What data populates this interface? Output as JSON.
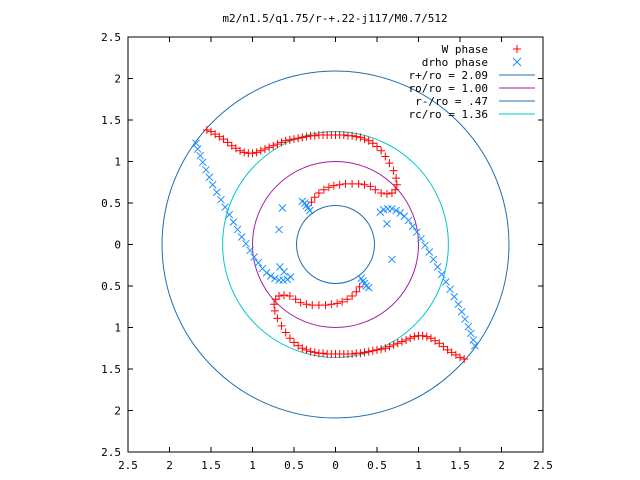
{
  "chart_data": {
    "type": "scatter",
    "title": "m2/n1.5/q1.75/r-+.22-j117/M0.7/512",
    "xlim": [
      -2.5,
      2.5
    ],
    "ylim": [
      -2.5,
      2.5
    ],
    "x_tick_values": [
      -2.5,
      -2,
      -1.5,
      -1,
      -0.5,
      0,
      0.5,
      1,
      1.5,
      2,
      2.5
    ],
    "x_tick_labels": [
      "2.5",
      "2",
      "1.5",
      "1",
      "0.5",
      "0",
      "0.5",
      "1",
      "1.5",
      "2",
      "2.5"
    ],
    "y_tick_values": [
      2.5,
      2,
      1.5,
      1,
      0.5,
      0,
      -0.5,
      -1,
      -1.5,
      -2,
      -2.5
    ],
    "y_tick_labels": [
      "2.5",
      "2",
      "1.5",
      "1",
      "0.5",
      "0",
      "0.5",
      "1",
      "1.5",
      "2",
      "2.5"
    ],
    "grid": false,
    "legend_position": "top-right",
    "series": [
      {
        "name": "W phase",
        "marker": "plus",
        "color": "#ff0000",
        "points": [
          [
            -1.55,
            1.38
          ],
          [
            -1.5,
            1.36
          ],
          [
            -1.45,
            1.33
          ],
          [
            -1.4,
            1.3
          ],
          [
            -1.35,
            1.27
          ],
          [
            -1.3,
            1.23
          ],
          [
            -1.25,
            1.19
          ],
          [
            -1.2,
            1.16
          ],
          [
            -1.15,
            1.13
          ],
          [
            -1.1,
            1.11
          ],
          [
            -1.05,
            1.1
          ],
          [
            -1.0,
            1.1
          ],
          [
            -0.95,
            1.11
          ],
          [
            -0.9,
            1.13
          ],
          [
            -0.85,
            1.15
          ],
          [
            -0.8,
            1.17
          ],
          [
            -0.75,
            1.19
          ],
          [
            -0.7,
            1.21
          ],
          [
            -0.65,
            1.23
          ],
          [
            -0.6,
            1.25
          ],
          [
            -0.55,
            1.26
          ],
          [
            -0.5,
            1.27
          ],
          [
            -0.45,
            1.28
          ],
          [
            -0.4,
            1.29
          ],
          [
            -0.35,
            1.3
          ],
          [
            -0.3,
            1.31
          ],
          [
            -0.25,
            1.31
          ],
          [
            -0.2,
            1.32
          ],
          [
            -0.15,
            1.32
          ],
          [
            -0.1,
            1.32
          ],
          [
            -0.05,
            1.32
          ],
          [
            0.0,
            1.32
          ],
          [
            0.05,
            1.32
          ],
          [
            0.1,
            1.32
          ],
          [
            0.15,
            1.31
          ],
          [
            0.2,
            1.31
          ],
          [
            0.25,
            1.3
          ],
          [
            0.3,
            1.29
          ],
          [
            0.35,
            1.27
          ],
          [
            0.4,
            1.25
          ],
          [
            0.45,
            1.22
          ],
          [
            0.5,
            1.18
          ],
          [
            0.55,
            1.13
          ],
          [
            0.6,
            1.06
          ],
          [
            0.65,
            0.98
          ],
          [
            0.7,
            0.89
          ],
          [
            0.73,
            0.8
          ],
          [
            0.74,
            0.72
          ],
          [
            0.72,
            0.66
          ],
          [
            0.68,
            0.62
          ],
          [
            0.62,
            0.61
          ],
          [
            0.55,
            0.62
          ],
          [
            0.48,
            0.66
          ],
          [
            0.42,
            0.7
          ],
          [
            0.35,
            0.72
          ],
          [
            0.28,
            0.73
          ],
          [
            0.2,
            0.73
          ],
          [
            0.12,
            0.73
          ],
          [
            0.05,
            0.72
          ],
          [
            -0.02,
            0.71
          ],
          [
            -0.08,
            0.69
          ],
          [
            -0.14,
            0.66
          ],
          [
            -0.2,
            0.62
          ],
          [
            -0.25,
            0.57
          ],
          [
            -0.29,
            0.51
          ],
          [
            1.55,
            -1.38
          ],
          [
            1.5,
            -1.36
          ],
          [
            1.45,
            -1.33
          ],
          [
            1.4,
            -1.3
          ],
          [
            1.35,
            -1.27
          ],
          [
            1.3,
            -1.23
          ],
          [
            1.25,
            -1.19
          ],
          [
            1.2,
            -1.16
          ],
          [
            1.15,
            -1.13
          ],
          [
            1.1,
            -1.11
          ],
          [
            1.05,
            -1.1
          ],
          [
            1.0,
            -1.1
          ],
          [
            0.95,
            -1.11
          ],
          [
            0.9,
            -1.13
          ],
          [
            0.85,
            -1.15
          ],
          [
            0.8,
            -1.17
          ],
          [
            0.75,
            -1.19
          ],
          [
            0.7,
            -1.21
          ],
          [
            0.65,
            -1.23
          ],
          [
            0.6,
            -1.25
          ],
          [
            0.55,
            -1.26
          ],
          [
            0.5,
            -1.27
          ],
          [
            0.45,
            -1.28
          ],
          [
            0.4,
            -1.29
          ],
          [
            0.35,
            -1.3
          ],
          [
            0.3,
            -1.31
          ],
          [
            0.25,
            -1.31
          ],
          [
            0.2,
            -1.32
          ],
          [
            0.15,
            -1.32
          ],
          [
            0.1,
            -1.32
          ],
          [
            0.05,
            -1.32
          ],
          [
            0.0,
            -1.32
          ],
          [
            -0.05,
            -1.32
          ],
          [
            -0.1,
            -1.32
          ],
          [
            -0.15,
            -1.31
          ],
          [
            -0.2,
            -1.31
          ],
          [
            -0.25,
            -1.3
          ],
          [
            -0.3,
            -1.29
          ],
          [
            -0.35,
            -1.27
          ],
          [
            -0.4,
            -1.25
          ],
          [
            -0.45,
            -1.22
          ],
          [
            -0.5,
            -1.18
          ],
          [
            -0.55,
            -1.13
          ],
          [
            -0.6,
            -1.06
          ],
          [
            -0.65,
            -0.98
          ],
          [
            -0.7,
            -0.89
          ],
          [
            -0.73,
            -0.8
          ],
          [
            -0.74,
            -0.72
          ],
          [
            -0.72,
            -0.66
          ],
          [
            -0.68,
            -0.62
          ],
          [
            -0.62,
            -0.61
          ],
          [
            -0.55,
            -0.62
          ],
          [
            -0.48,
            -0.66
          ],
          [
            -0.42,
            -0.7
          ],
          [
            -0.35,
            -0.72
          ],
          [
            -0.28,
            -0.73
          ],
          [
            -0.2,
            -0.73
          ],
          [
            -0.12,
            -0.73
          ],
          [
            -0.05,
            -0.72
          ],
          [
            0.02,
            -0.71
          ],
          [
            0.08,
            -0.69
          ],
          [
            0.14,
            -0.66
          ],
          [
            0.2,
            -0.62
          ],
          [
            0.25,
            -0.57
          ],
          [
            0.29,
            -0.51
          ]
        ]
      },
      {
        "name": "drho phase",
        "marker": "cross",
        "color": "#1e90ff",
        "points": [
          [
            -1.68,
            1.22
          ],
          [
            -1.66,
            1.15
          ],
          [
            -1.63,
            1.07
          ],
          [
            -1.6,
            0.99
          ],
          [
            -1.56,
            0.9
          ],
          [
            -1.52,
            0.81
          ],
          [
            -1.48,
            0.72
          ],
          [
            -1.43,
            0.63
          ],
          [
            -1.38,
            0.54
          ],
          [
            -1.33,
            0.45
          ],
          [
            -1.28,
            0.36
          ],
          [
            -1.23,
            0.27
          ],
          [
            -1.18,
            0.18
          ],
          [
            -1.13,
            0.09
          ],
          [
            -1.08,
            0.01
          ],
          [
            -1.03,
            -0.07
          ],
          [
            -0.98,
            -0.15
          ],
          [
            -0.93,
            -0.22
          ],
          [
            -0.88,
            -0.29
          ],
          [
            -0.83,
            -0.34
          ],
          [
            -0.78,
            -0.38
          ],
          [
            -0.73,
            -0.41
          ],
          [
            -0.68,
            -0.43
          ],
          [
            -0.63,
            -0.43
          ],
          [
            -0.58,
            -0.42
          ],
          [
            -0.54,
            -0.39
          ],
          [
            -0.31,
            0.41
          ],
          [
            -0.33,
            0.44
          ],
          [
            -0.35,
            0.47
          ],
          [
            -0.37,
            0.5
          ],
          [
            -0.4,
            0.52
          ],
          [
            -0.68,
            0.18
          ],
          [
            -0.64,
            0.44
          ],
          [
            -0.67,
            -0.27
          ],
          [
            -0.62,
            -0.33
          ],
          [
            1.68,
            -1.22
          ],
          [
            1.66,
            -1.15
          ],
          [
            1.63,
            -1.07
          ],
          [
            1.6,
            -0.99
          ],
          [
            1.56,
            -0.9
          ],
          [
            1.52,
            -0.81
          ],
          [
            1.48,
            -0.72
          ],
          [
            1.43,
            -0.63
          ],
          [
            1.38,
            -0.54
          ],
          [
            1.33,
            -0.45
          ],
          [
            1.28,
            -0.36
          ],
          [
            1.23,
            -0.27
          ],
          [
            1.18,
            -0.18
          ],
          [
            1.13,
            -0.09
          ],
          [
            1.08,
            -0.01
          ],
          [
            1.03,
            0.07
          ],
          [
            0.98,
            0.15
          ],
          [
            0.93,
            0.22
          ],
          [
            0.88,
            0.29
          ],
          [
            0.83,
            0.34
          ],
          [
            0.78,
            0.38
          ],
          [
            0.73,
            0.41
          ],
          [
            0.68,
            0.43
          ],
          [
            0.63,
            0.43
          ],
          [
            0.58,
            0.42
          ],
          [
            0.54,
            0.39
          ],
          [
            0.31,
            -0.41
          ],
          [
            0.33,
            -0.44
          ],
          [
            0.35,
            -0.47
          ],
          [
            0.37,
            -0.5
          ],
          [
            0.4,
            -0.52
          ],
          [
            0.68,
            -0.18
          ],
          [
            0.62,
            0.25
          ]
        ]
      },
      {
        "name": "r+/ro = 2.09",
        "type": "circle",
        "radius": 2.09,
        "color": "#1f6fb0"
      },
      {
        "name": "ro/ro = 1.00",
        "type": "circle",
        "radius": 1.0,
        "color": "#a020a0"
      },
      {
        "name": "r-/ro = .47",
        "type": "circle",
        "radius": 0.47,
        "color": "#1f6fb0"
      },
      {
        "name": "rc/ro = 1.36",
        "type": "circle",
        "radius": 1.36,
        "color": "#00c8c8"
      }
    ]
  }
}
